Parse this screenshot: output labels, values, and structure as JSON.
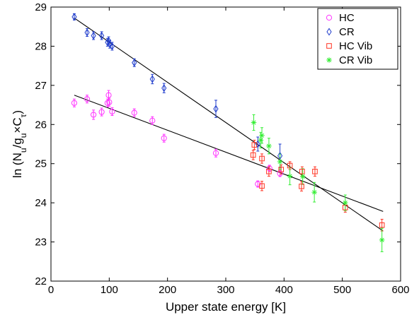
{
  "chart_data": {
    "type": "scatter",
    "title": "",
    "xlabel": "Upper state energy [K]",
    "ylabel": {
      "prefix": "ln (N",
      "sub1": "u",
      "mid1": "/g",
      "sub2": "u",
      "mid2": "×C",
      "sub3": "τ",
      "suffix": ")"
    },
    "xlim": [
      0,
      600
    ],
    "ylim": [
      22,
      29
    ],
    "xticks": [
      "0",
      "100",
      "200",
      "300",
      "400",
      "500",
      "600"
    ],
    "yticks": [
      "22",
      "23",
      "24",
      "25",
      "26",
      "27",
      "28",
      "29"
    ],
    "grid": false,
    "legend_position": "top-right",
    "series": [
      {
        "name": "HC",
        "marker": "circle",
        "color": "#ff33ff",
        "points": [
          {
            "x": 40,
            "y": 26.55,
            "err": 0.1
          },
          {
            "x": 62,
            "y": 26.65,
            "err": 0.1
          },
          {
            "x": 73,
            "y": 26.25,
            "err": 0.12
          },
          {
            "x": 87,
            "y": 26.32,
            "err": 0.1
          },
          {
            "x": 97,
            "y": 26.55,
            "err": 0.1
          },
          {
            "x": 99,
            "y": 26.75,
            "err": 0.12
          },
          {
            "x": 100,
            "y": 26.57,
            "err": 0.1
          },
          {
            "x": 105,
            "y": 26.33,
            "err": 0.1
          },
          {
            "x": 143,
            "y": 26.3,
            "err": 0.1
          },
          {
            "x": 174,
            "y": 26.1,
            "err": 0.1
          },
          {
            "x": 194,
            "y": 25.65,
            "err": 0.1
          },
          {
            "x": 283,
            "y": 25.27,
            "err": 0.1
          },
          {
            "x": 355,
            "y": 24.48,
            "err": 0.08
          },
          {
            "x": 375,
            "y": 24.88,
            "err": 0.08
          },
          {
            "x": 393,
            "y": 24.75,
            "err": 0.08
          }
        ]
      },
      {
        "name": "CR",
        "marker": "diamond",
        "color": "#1f3ccc",
        "points": [
          {
            "x": 40,
            "y": 28.75,
            "err": 0.08
          },
          {
            "x": 62,
            "y": 28.35,
            "err": 0.1
          },
          {
            "x": 73,
            "y": 28.27,
            "err": 0.1
          },
          {
            "x": 87,
            "y": 28.27,
            "err": 0.1
          },
          {
            "x": 97,
            "y": 28.1,
            "err": 0.1
          },
          {
            "x": 99,
            "y": 28.14,
            "err": 0.1
          },
          {
            "x": 101,
            "y": 28.05,
            "err": 0.1
          },
          {
            "x": 105,
            "y": 28.0,
            "err": 0.1
          },
          {
            "x": 143,
            "y": 27.58,
            "err": 0.1
          },
          {
            "x": 174,
            "y": 27.16,
            "err": 0.12
          },
          {
            "x": 194,
            "y": 26.93,
            "err": 0.12
          },
          {
            "x": 283,
            "y": 26.4,
            "err": 0.22
          },
          {
            "x": 355,
            "y": 25.5,
            "err": 0.18
          },
          {
            "x": 393,
            "y": 25.2,
            "err": 0.3
          }
        ]
      },
      {
        "name": "HC Vib",
        "marker": "square",
        "color": "#ff3322",
        "points": [
          {
            "x": 347,
            "y": 25.22,
            "err": 0.12
          },
          {
            "x": 349,
            "y": 25.48,
            "err": 0.12
          },
          {
            "x": 362,
            "y": 24.43,
            "err": 0.12
          },
          {
            "x": 362,
            "y": 25.13,
            "err": 0.12
          },
          {
            "x": 374,
            "y": 24.8,
            "err": 0.12
          },
          {
            "x": 395,
            "y": 24.85,
            "err": 0.12
          },
          {
            "x": 410,
            "y": 24.95,
            "err": 0.1
          },
          {
            "x": 430,
            "y": 24.42,
            "err": 0.12
          },
          {
            "x": 431,
            "y": 24.8,
            "err": 0.12
          },
          {
            "x": 453,
            "y": 24.8,
            "err": 0.12
          },
          {
            "x": 505,
            "y": 23.88,
            "err": 0.12
          },
          {
            "x": 568,
            "y": 23.43,
            "err": 0.15
          }
        ]
      },
      {
        "name": "CR Vib",
        "marker": "star",
        "color": "#33ee33",
        "points": [
          {
            "x": 348,
            "y": 26.05,
            "err": 0.2
          },
          {
            "x": 360,
            "y": 25.6,
            "err": 0.2
          },
          {
            "x": 362,
            "y": 25.72,
            "err": 0.2
          },
          {
            "x": 374,
            "y": 25.45,
            "err": 0.2
          },
          {
            "x": 393,
            "y": 25.05,
            "err": 0.2
          },
          {
            "x": 410,
            "y": 24.68,
            "err": 0.22
          },
          {
            "x": 432,
            "y": 24.67,
            "err": 0.2
          },
          {
            "x": 452,
            "y": 24.27,
            "err": 0.25
          },
          {
            "x": 505,
            "y": 24.0,
            "err": 0.2
          },
          {
            "x": 568,
            "y": 23.05,
            "err": 0.3
          }
        ]
      }
    ],
    "fit_lines": [
      {
        "from": [
          40,
          28.72
        ],
        "to": [
          570,
          23.28
        ]
      },
      {
        "from": [
          40,
          26.75
        ],
        "to": [
          570,
          23.78
        ]
      }
    ]
  }
}
